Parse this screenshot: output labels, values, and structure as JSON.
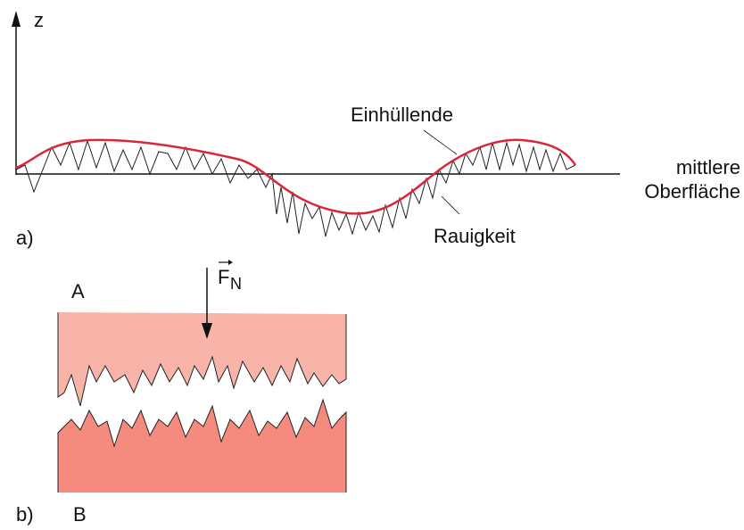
{
  "panel_a": {
    "label": "a)",
    "axis_label": "z",
    "envelope_label": "Einhüllende",
    "roughness_label": "Rauigkeit",
    "surface_label": [
      "mittlere",
      "Oberfläche"
    ]
  },
  "panel_b": {
    "label": "b)",
    "body_top": "A",
    "body_bottom": "B",
    "force": {
      "symbol": "F",
      "subscript": "N"
    }
  }
}
